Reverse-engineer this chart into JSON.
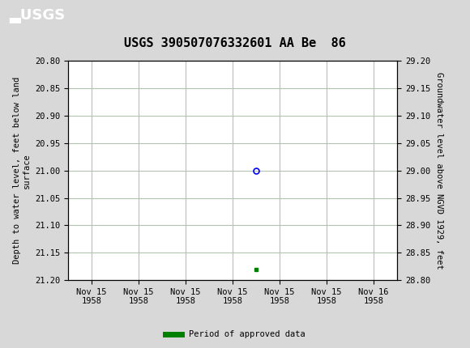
{
  "title": "USGS 390507076332601 AA Be  86",
  "ylabel_left": "Depth to water level, feet below land\nsurface",
  "ylabel_right": "Groundwater level above NGVD 1929, feet",
  "ylim_left": [
    20.8,
    21.2
  ],
  "ylim_right": [
    28.8,
    29.2
  ],
  "yticks_left": [
    20.8,
    20.85,
    20.9,
    20.95,
    21.0,
    21.05,
    21.1,
    21.15,
    21.2
  ],
  "yticks_right": [
    28.8,
    28.85,
    28.9,
    28.95,
    29.0,
    29.05,
    29.1,
    29.15,
    29.2
  ],
  "point_blue_x": 3.5,
  "point_blue_y": 21.0,
  "point_green_x": 3.5,
  "point_green_y": 21.18,
  "header_color": "#0a7035",
  "background_color": "#d8d8d8",
  "plot_bg_color": "#ffffff",
  "grid_color": "#b0c4b0",
  "xtick_labels": [
    "Nov 15\n1958",
    "Nov 15\n1958",
    "Nov 15\n1958",
    "Nov 15\n1958",
    "Nov 15\n1958",
    "Nov 15\n1958",
    "Nov 16\n1958"
  ],
  "xtick_positions": [
    0,
    1,
    2,
    3,
    4,
    5,
    6
  ],
  "legend_label": "Period of approved data",
  "legend_color": "#008000",
  "title_fontsize": 11,
  "axis_fontsize": 7.5,
  "tick_fontsize": 7.5
}
